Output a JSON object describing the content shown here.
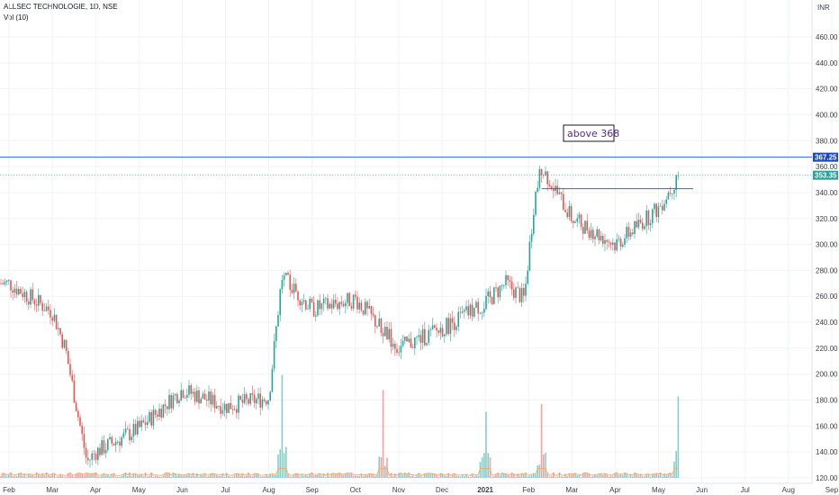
{
  "header": {
    "symbol_line": "ALLSEC TECHNOLOGIE, 1D, NSE",
    "volume_line": "Vol (10)"
  },
  "price_scale_unit": "INR",
  "annotation_text": "above 368",
  "colors": {
    "up": "#26a69a",
    "down": "#ef5350",
    "resistance_line": "#2962ff",
    "last_price_line": "#26a69a",
    "volume_ma": "#f7a35c",
    "annotation_border": "#131722",
    "annotation_text": "#5b2a86"
  },
  "chart_data": {
    "type": "candlestick",
    "title": "ALLSEC TECHNOLOGIE, 1D, NSE",
    "ylim": [
      120,
      480
    ],
    "y_ticks": [
      "460.00",
      "440.00",
      "420.00",
      "400.00",
      "380.00",
      "360.00",
      "340.00",
      "320.00",
      "300.00",
      "280.00",
      "260.00",
      "240.00",
      "220.00",
      "200.00",
      "180.00",
      "160.00",
      "140.00",
      "120.00"
    ],
    "x_ticks": [
      "Feb",
      "Mar",
      "Apr",
      "May",
      "Jun",
      "Jul",
      "Aug",
      "Sep",
      "Oct",
      "Nov",
      "Dec",
      "2021",
      "Feb",
      "Mar",
      "Apr",
      "May",
      "Jun",
      "Jul",
      "Aug",
      "Sep"
    ],
    "resistance_level": {
      "label": "367.25",
      "value": 367.25
    },
    "last_price": {
      "label": "353.35",
      "value": 353.35
    },
    "breakout_trendline": {
      "value": 343.0,
      "from": "2021-02",
      "to": "2021-05"
    },
    "price_path": [
      {
        "date": "2020-02",
        "close": 270
      },
      {
        "date": "2020-03-01",
        "close": 248
      },
      {
        "date": "2020-03-10",
        "close": 220
      },
      {
        "date": "2020-03-25",
        "close": 132
      },
      {
        "date": "2020-04",
        "close": 140
      },
      {
        "date": "2020-05",
        "close": 158
      },
      {
        "date": "2020-06",
        "close": 188
      },
      {
        "date": "2020-07",
        "close": 175
      },
      {
        "date": "2020-08-01",
        "close": 182
      },
      {
        "date": "2020-08-10",
        "close": 275
      },
      {
        "date": "2020-09",
        "close": 250
      },
      {
        "date": "2020-10",
        "close": 258
      },
      {
        "date": "2020-11",
        "close": 220
      },
      {
        "date": "2020-12",
        "close": 235
      },
      {
        "date": "2021-01-01",
        "close": 255
      },
      {
        "date": "2021-01-15",
        "close": 270
      },
      {
        "date": "2021-01-28",
        "close": 258
      },
      {
        "date": "2021-02-05",
        "close": 335
      },
      {
        "date": "2021-02-10",
        "close": 360
      },
      {
        "date": "2021-03",
        "close": 320
      },
      {
        "date": "2021-04",
        "close": 300
      },
      {
        "date": "2021-05-01",
        "close": 328
      },
      {
        "date": "2021-05-15",
        "close": 353.35
      }
    ],
    "volume_peaks": [
      {
        "date": "2020-08-10",
        "label": "spike"
      },
      {
        "date": "2020-10-20",
        "label": "spike"
      },
      {
        "date": "2021-01-01",
        "label": "spike"
      },
      {
        "date": "2021-02-10",
        "label": "spike"
      },
      {
        "date": "2021-05-15",
        "label": "spike"
      }
    ]
  }
}
